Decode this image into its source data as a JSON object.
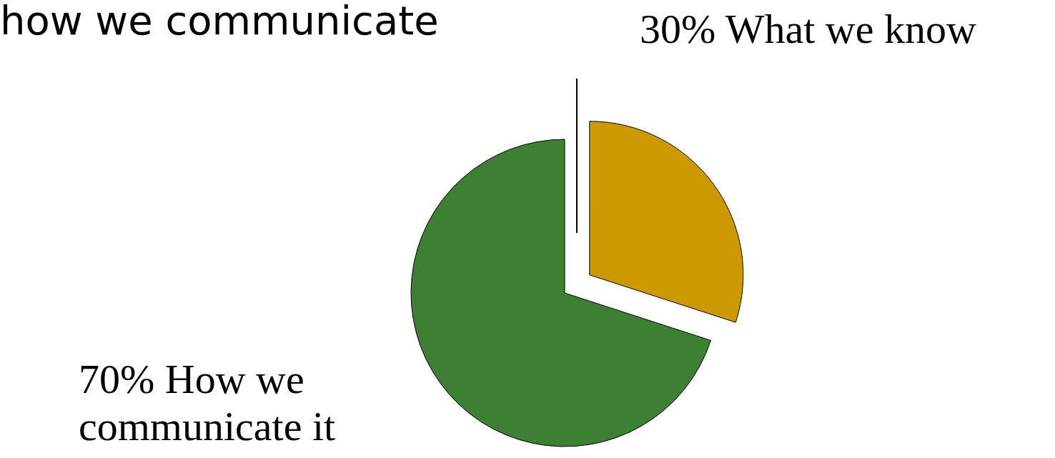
{
  "chart_data": {
    "type": "pie",
    "title": "how we communicate",
    "categories": [
      "What we know",
      "How we communicate it"
    ],
    "values": [
      30,
      70
    ],
    "colors": [
      "#cc9900",
      "#3d8033"
    ],
    "value_labels": [
      "30%",
      "70%"
    ]
  }
}
